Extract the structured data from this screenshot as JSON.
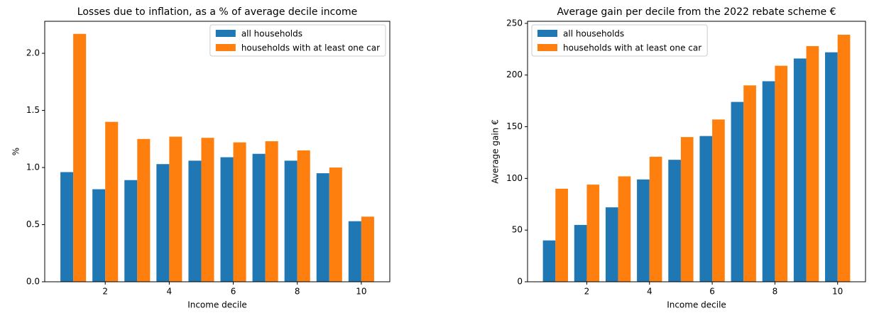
{
  "chart_data": [
    {
      "type": "bar",
      "title": "Losses due to inflation, as a % of average decile income",
      "x_label": "Income decile",
      "y_label": "%",
      "x": [
        1,
        2,
        3,
        4,
        5,
        6,
        7,
        8,
        9,
        10
      ],
      "series": [
        {
          "name": "all households",
          "color": "#1f77b4",
          "values": [
            0.96,
            0.81,
            0.89,
            1.03,
            1.06,
            1.09,
            1.12,
            1.06,
            0.95,
            0.53
          ]
        },
        {
          "name": "households with at least one car",
          "color": "#ff7f0e",
          "values": [
            2.17,
            1.4,
            1.25,
            1.27,
            1.26,
            1.22,
            1.23,
            1.15,
            1.0,
            0.57
          ]
        }
      ],
      "xlim": [
        0.11,
        10.89
      ],
      "xticks": [
        2,
        4,
        6,
        8,
        10
      ],
      "ylim": [
        0,
        2.28
      ],
      "yticks": [
        {
          "value": 0,
          "label": "0.0"
        },
        0.5,
        {
          "value": 1,
          "label": "1.0"
        },
        1.5,
        {
          "value": 2,
          "label": "2.0"
        }
      ],
      "legend": "upper-right"
    },
    {
      "type": "bar",
      "title": "Average gain per decile from the 2022 rebate scheme €",
      "x_label": "Income decile",
      "y_label": "Average gain €",
      "x": [
        1,
        2,
        3,
        4,
        5,
        6,
        7,
        8,
        9,
        10
      ],
      "series": [
        {
          "name": "all households",
          "color": "#1f77b4",
          "values": [
            40,
            55,
            72,
            99,
            118,
            141,
            174,
            194,
            216,
            222
          ]
        },
        {
          "name": "households with at least one car",
          "color": "#ff7f0e",
          "values": [
            90,
            94,
            102,
            121,
            140,
            157,
            190,
            209,
            228,
            239
          ]
        }
      ],
      "xlim": [
        0.11,
        10.89
      ],
      "xticks": [
        2,
        4,
        6,
        8,
        10
      ],
      "ylim": [
        0,
        252
      ],
      "yticks": [
        0,
        50,
        100,
        150,
        200,
        250
      ],
      "legend": "upper-left"
    }
  ]
}
